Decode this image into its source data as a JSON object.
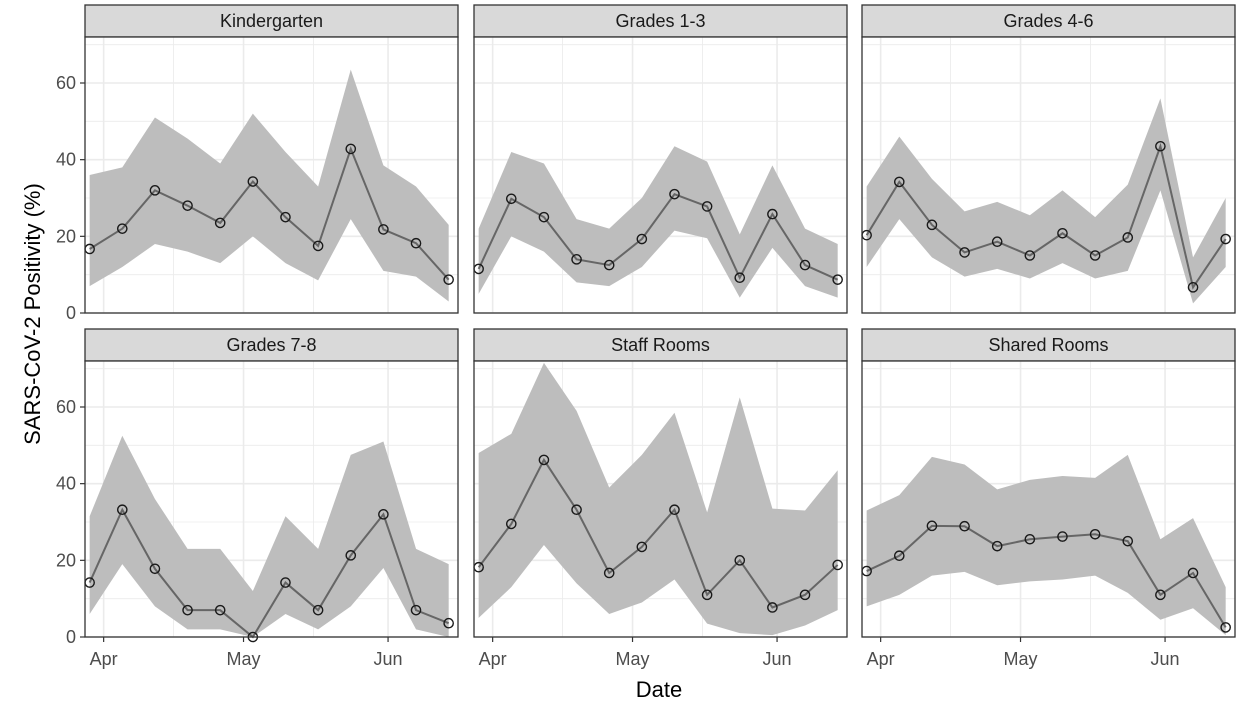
{
  "chart_data": {
    "type": "line",
    "xlabel": "Date",
    "ylabel": "SARS-CoV-2 Positivity (%)",
    "ylim": [
      0,
      72
    ],
    "y_ticks": [
      0,
      20,
      40,
      60
    ],
    "x_range": [
      "2021-03-28",
      "2021-06-16"
    ],
    "x_ticks": [
      {
        "date": "2021-04-01",
        "label": "Apr"
      },
      {
        "date": "2021-05-01",
        "label": "May"
      },
      {
        "date": "2021-06-01",
        "label": "Jun"
      }
    ],
    "grid": true,
    "facet_layout": "2 rows x 3 columns",
    "colors": {
      "line": "#666666",
      "ribbon": "#bdbdbd",
      "point": "#1a1a1a",
      "strip": "#d9d9d9",
      "grid": "#ebebeb"
    },
    "panels": [
      {
        "title": "Kindergarten",
        "dates": [
          "2021-03-29",
          "2021-04-05",
          "2021-04-12",
          "2021-04-19",
          "2021-04-26",
          "2021-05-03",
          "2021-05-10",
          "2021-05-17",
          "2021-05-24",
          "2021-05-31",
          "2021-06-07",
          "2021-06-14"
        ],
        "values": [
          16.7,
          22.0,
          32.0,
          28.0,
          23.5,
          34.3,
          25.0,
          17.5,
          42.8,
          21.8,
          18.2,
          8.7
        ],
        "lower": [
          7,
          12,
          18,
          16,
          13,
          20,
          13,
          8.5,
          24.5,
          11,
          9.5,
          3
        ],
        "upper": [
          36,
          38,
          51,
          45.5,
          39,
          52,
          42,
          33,
          63.5,
          38.5,
          33,
          23
        ]
      },
      {
        "title": "Grades 1-3",
        "dates": [
          "2021-03-29",
          "2021-04-05",
          "2021-04-12",
          "2021-04-19",
          "2021-04-26",
          "2021-05-03",
          "2021-05-10",
          "2021-05-17",
          "2021-05-24",
          "2021-05-31",
          "2021-06-07",
          "2021-06-14"
        ],
        "values": [
          11.5,
          29.8,
          25.0,
          14.0,
          12.5,
          19.3,
          31.0,
          27.8,
          9.2,
          25.8,
          12.5,
          8.7
        ],
        "lower": [
          5,
          20,
          16,
          8,
          7,
          12,
          21.5,
          19.5,
          4,
          17,
          7,
          4
        ],
        "upper": [
          22,
          42,
          39,
          24.5,
          22,
          30,
          43.5,
          39.5,
          20.5,
          38.5,
          22,
          18
        ]
      },
      {
        "title": "Grades 4-6",
        "dates": [
          "2021-03-29",
          "2021-04-05",
          "2021-04-12",
          "2021-04-19",
          "2021-04-26",
          "2021-05-03",
          "2021-05-10",
          "2021-05-17",
          "2021-05-24",
          "2021-05-31",
          "2021-06-07",
          "2021-06-14"
        ],
        "values": [
          20.3,
          34.2,
          23.0,
          15.8,
          18.6,
          15.0,
          20.8,
          15.0,
          19.7,
          43.5,
          6.7,
          19.3
        ],
        "lower": [
          12,
          24.5,
          14.5,
          9.5,
          11.5,
          9,
          13,
          9,
          11,
          32,
          2.5,
          12
        ],
        "upper": [
          33,
          46,
          35,
          26.5,
          29,
          25.5,
          32,
          25,
          33.5,
          56,
          14.5,
          30
        ]
      },
      {
        "title": "Grades 7-8",
        "dates": [
          "2021-03-29",
          "2021-04-05",
          "2021-04-12",
          "2021-04-19",
          "2021-04-26",
          "2021-05-03",
          "2021-05-10",
          "2021-05-17",
          "2021-05-24",
          "2021-05-31",
          "2021-06-07",
          "2021-06-14"
        ],
        "values": [
          14.2,
          33.2,
          17.8,
          7.0,
          7.0,
          0.0,
          14.2,
          7.0,
          21.3,
          32.0,
          7.0,
          3.6
        ],
        "lower": [
          6,
          19,
          8,
          2,
          2,
          0,
          6,
          2,
          8,
          18,
          2,
          0
        ],
        "upper": [
          31.5,
          52.5,
          36,
          23,
          23,
          12,
          31.5,
          23,
          47.5,
          51,
          23,
          19
        ]
      },
      {
        "title": "Staff Rooms",
        "dates": [
          "2021-03-29",
          "2021-04-05",
          "2021-04-12",
          "2021-04-19",
          "2021-04-26",
          "2021-05-03",
          "2021-05-10",
          "2021-05-17",
          "2021-05-24",
          "2021-05-31",
          "2021-06-07",
          "2021-06-14"
        ],
        "values": [
          18.2,
          29.5,
          46.2,
          33.2,
          16.7,
          23.5,
          33.2,
          11.0,
          20.0,
          7.7,
          11.0,
          18.8
        ],
        "lower": [
          5,
          13,
          24,
          14,
          6,
          9,
          15,
          3.5,
          1,
          0.5,
          3,
          7
        ],
        "upper": [
          48,
          53,
          71.5,
          59,
          39,
          47.5,
          58.5,
          32.5,
          62.5,
          33.5,
          33,
          43.5
        ]
      },
      {
        "title": "Shared Rooms",
        "dates": [
          "2021-03-29",
          "2021-04-05",
          "2021-04-12",
          "2021-04-19",
          "2021-04-26",
          "2021-05-03",
          "2021-05-10",
          "2021-05-17",
          "2021-05-24",
          "2021-05-31",
          "2021-06-07",
          "2021-06-14"
        ],
        "values": [
          17.2,
          21.2,
          29.0,
          28.9,
          23.7,
          25.5,
          26.2,
          26.8,
          25.0,
          11.0,
          16.7,
          2.5
        ],
        "lower": [
          8,
          11,
          16,
          17,
          13.5,
          14.5,
          15,
          16,
          11.5,
          4.5,
          7.5,
          0.5
        ],
        "upper": [
          33,
          37,
          47,
          45,
          38.5,
          41,
          42,
          41.5,
          47.5,
          25.5,
          31,
          13
        ]
      }
    ]
  }
}
